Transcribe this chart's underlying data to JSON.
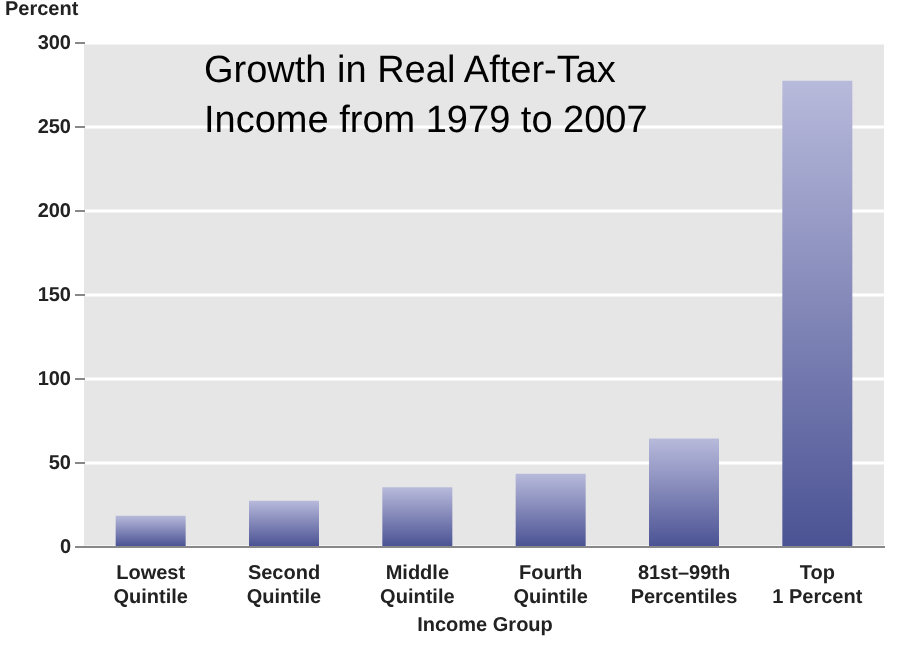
{
  "chart_data": {
    "type": "bar",
    "title": "Growth in Real After-Tax\nIncome from 1979 to 2007",
    "xlabel": "Income Group",
    "ylabel": "Percent",
    "categories": [
      "Lowest\nQuintile",
      "Second\nQuintile",
      "Middle\nQuintile",
      "Fourth\nQuintile",
      "81st–99th\nPercentiles",
      "Top\n1 Percent"
    ],
    "series": [
      {
        "color": "#4b5394",
        "values": [
          18,
          27,
          35,
          43,
          64,
          277
        ]
      }
    ],
    "ylim": [
      0,
      300
    ],
    "yticks": [
      0,
      50,
      100,
      150,
      200,
      250,
      300
    ],
    "grid": "y"
  }
}
